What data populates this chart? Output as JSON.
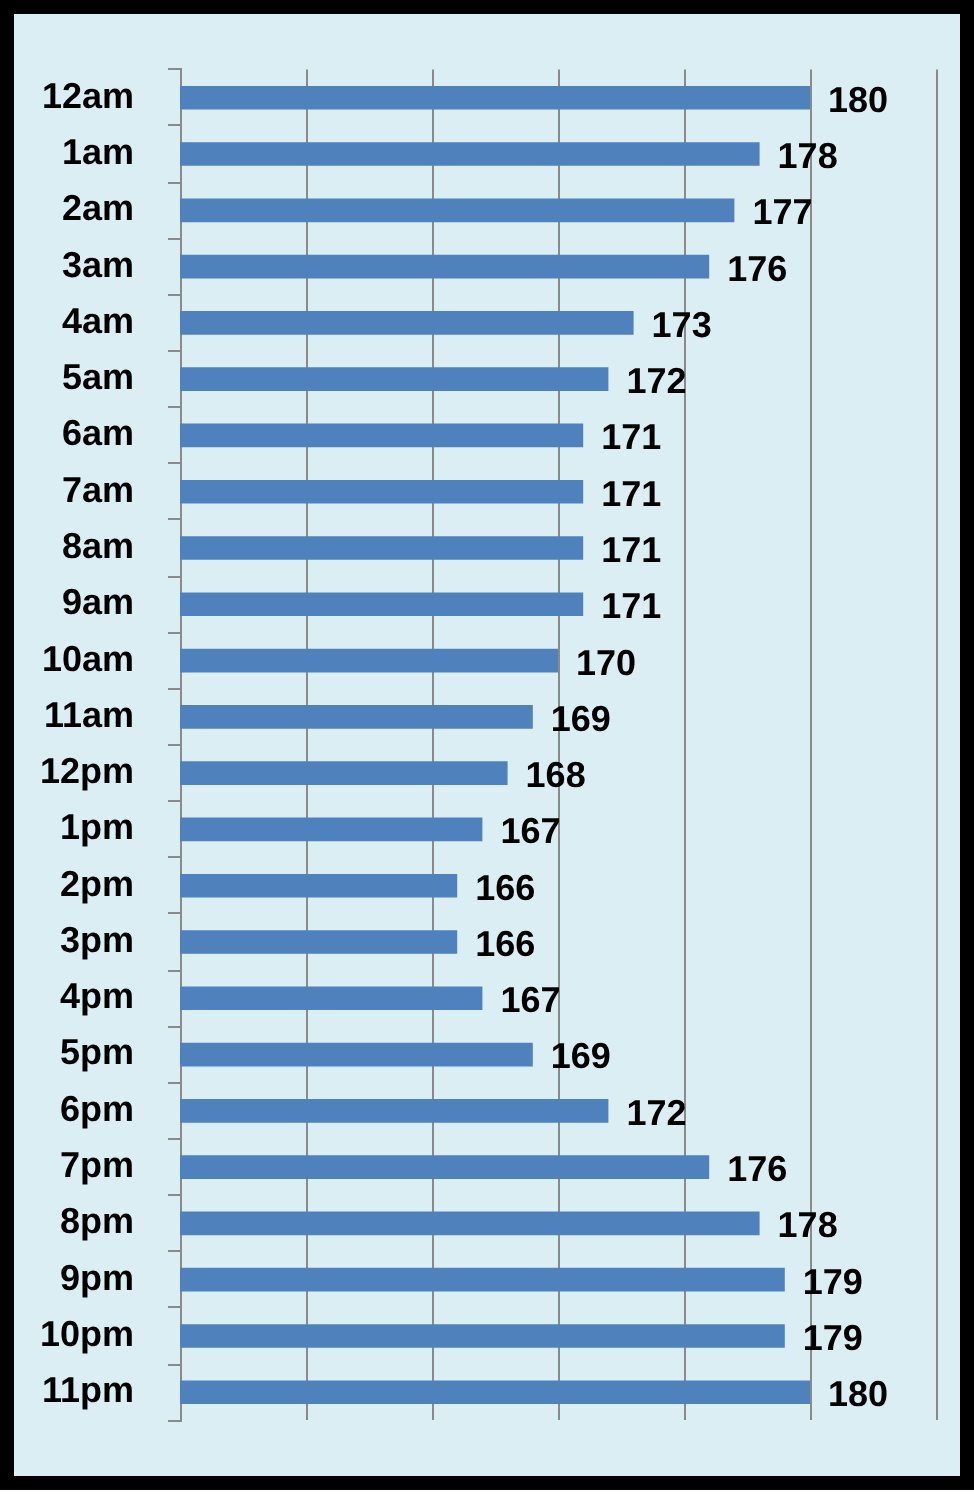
{
  "chart_data": {
    "type": "bar",
    "orientation": "horizontal",
    "categories": [
      "12am",
      "1am",
      "2am",
      "3am",
      "4am",
      "5am",
      "6am",
      "7am",
      "8am",
      "9am",
      "10am",
      "11am",
      "12pm",
      "1pm",
      "2pm",
      "3pm",
      "4pm",
      "5pm",
      "6pm",
      "7pm",
      "8pm",
      "9pm",
      "10pm",
      "11pm"
    ],
    "values": [
      180,
      178,
      177,
      176,
      173,
      172,
      171,
      171,
      171,
      171,
      170,
      169,
      168,
      167,
      166,
      166,
      167,
      169,
      172,
      176,
      178,
      179,
      179,
      180
    ],
    "color": "#4f81bd",
    "xlim": [
      155,
      185
    ],
    "xticks": [
      155,
      160,
      165,
      170,
      175,
      180,
      185
    ],
    "grid": "x",
    "tick_labels": "y",
    "data_labels": true
  }
}
